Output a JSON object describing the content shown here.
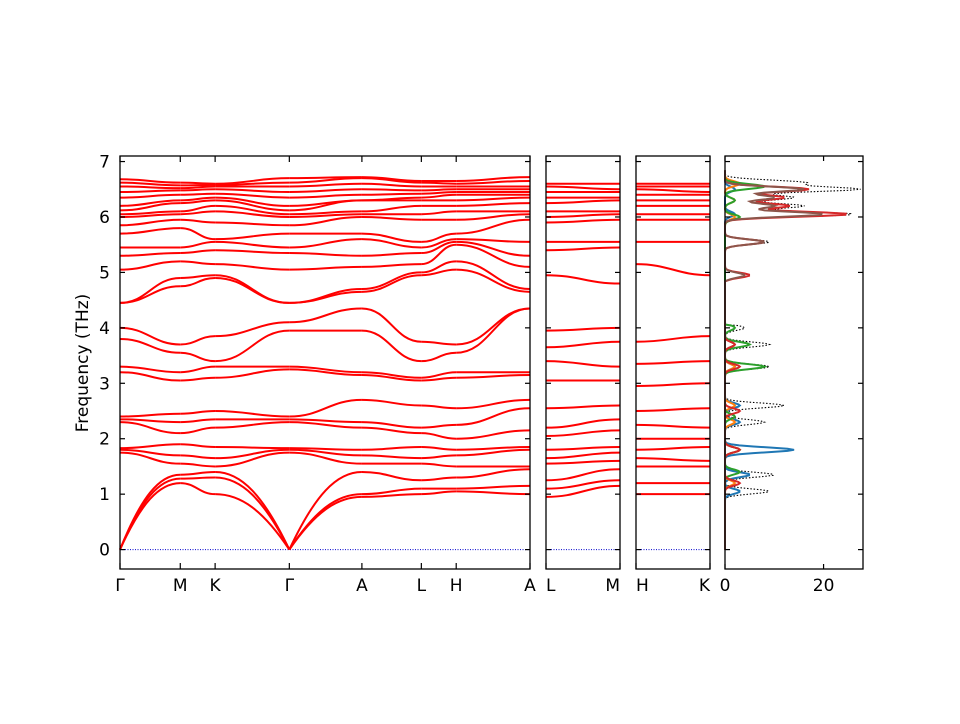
{
  "chart_data": {
    "type": "line",
    "ylabel": "Frequency (THz)",
    "ylim": [
      -0.35,
      7.1
    ],
    "y_ticks": [
      0,
      1,
      2,
      3,
      4,
      5,
      6,
      7
    ],
    "zero_line_color": "#0000cc",
    "band_color": "#ff0000",
    "band_panels": [
      {
        "id": "panel-main",
        "kpoints": [
          "Γ",
          "M",
          "K",
          "Γ",
          "A",
          "L",
          "H",
          "A"
        ],
        "kpos": [
          0,
          0.147,
          0.232,
          0.413,
          0.59,
          0.735,
          0.82,
          1.0
        ],
        "segments": [
          {
            "from": 0,
            "to": 1,
            "bands_start": [
              0,
              0,
              0,
              1.75,
              1.8,
              1.83,
              2.3,
              2.35,
              2.4,
              3.2,
              3.3,
              3.8,
              4.0,
              4.45,
              4.45,
              5.05,
              5.3,
              5.45,
              5.7,
              5.85,
              6.0,
              6.05,
              6.12,
              6.2,
              6.35,
              6.45,
              6.55,
              6.62,
              6.68
            ],
            "bands_end": [
              1.2,
              1.28,
              1.35,
              1.55,
              1.7,
              1.9,
              2.1,
              2.3,
              2.45,
              3.05,
              3.2,
              3.55,
              3.7,
              4.75,
              4.9,
              5.2,
              5.35,
              5.45,
              5.8,
              5.95,
              6.05,
              6.1,
              6.25,
              6.3,
              6.4,
              6.48,
              6.52,
              6.57,
              6.62
            ]
          },
          {
            "from": 1,
            "to": 2,
            "bands_start": [
              1.2,
              1.28,
              1.35,
              1.55,
              1.7,
              1.9,
              2.1,
              2.3,
              2.45,
              3.05,
              3.2,
              3.55,
              3.7,
              4.75,
              4.9,
              5.2,
              5.35,
              5.45,
              5.8,
              5.95,
              6.05,
              6.1,
              6.25,
              6.3,
              6.4,
              6.48,
              6.52,
              6.57,
              6.62
            ],
            "bands_end": [
              1.0,
              1.3,
              1.4,
              1.5,
              1.65,
              1.85,
              2.2,
              2.35,
              2.5,
              3.1,
              3.3,
              3.4,
              3.85,
              4.9,
              4.95,
              5.15,
              5.4,
              5.55,
              5.6,
              5.9,
              6.1,
              6.2,
              6.3,
              6.35,
              6.42,
              6.5,
              6.55,
              6.58,
              6.6
            ]
          },
          {
            "from": 2,
            "to": 3,
            "bands_start": [
              1.0,
              1.3,
              1.4,
              1.5,
              1.65,
              1.85,
              2.2,
              2.35,
              2.5,
              3.1,
              3.3,
              3.4,
              3.85,
              4.9,
              4.95,
              5.15,
              5.4,
              5.55,
              5.6,
              5.9,
              6.1,
              6.2,
              6.3,
              6.35,
              6.42,
              6.5,
              6.55,
              6.58,
              6.6
            ],
            "bands_end": [
              0,
              0,
              0,
              1.75,
              1.8,
              1.83,
              2.3,
              2.35,
              2.4,
              3.25,
              3.3,
              3.95,
              4.1,
              4.45,
              4.45,
              5.05,
              5.35,
              5.45,
              5.7,
              5.85,
              6.0,
              6.05,
              6.12,
              6.2,
              6.35,
              6.45,
              6.55,
              6.62,
              6.7
            ]
          },
          {
            "from": 3,
            "to": 4,
            "bands_start": [
              0,
              0,
              0,
              1.75,
              1.8,
              1.83,
              2.3,
              2.35,
              2.4,
              3.25,
              3.3,
              3.95,
              4.1,
              4.45,
              4.45,
              5.05,
              5.35,
              5.45,
              5.7,
              5.85,
              6.0,
              6.05,
              6.12,
              6.2,
              6.35,
              6.45,
              6.55,
              6.62,
              6.7
            ],
            "bands_end": [
              0.95,
              1.0,
              1.4,
              1.55,
              1.7,
              1.8,
              2.2,
              2.3,
              2.7,
              3.15,
              3.2,
              3.95,
              4.35,
              4.65,
              4.7,
              5.1,
              5.3,
              5.6,
              5.7,
              6.0,
              6.05,
              6.1,
              6.3,
              6.3,
              6.4,
              6.5,
              6.6,
              6.7,
              6.72
            ]
          },
          {
            "from": 4,
            "to": 5,
            "bands_start": [
              0.95,
              1.0,
              1.4,
              1.55,
              1.7,
              1.8,
              2.2,
              2.3,
              2.7,
              3.15,
              3.2,
              3.95,
              4.35,
              4.65,
              4.7,
              5.1,
              5.3,
              5.6,
              5.7,
              6.0,
              6.05,
              6.1,
              6.3,
              6.3,
              6.4,
              6.5,
              6.6,
              6.7,
              6.72
            ],
            "bands_end": [
              1.0,
              1.1,
              1.25,
              1.55,
              1.65,
              1.85,
              2.1,
              2.2,
              2.6,
              3.05,
              3.1,
              3.4,
              3.75,
              4.95,
              5.0,
              5.15,
              5.35,
              5.45,
              5.55,
              5.95,
              6.05,
              6.2,
              6.3,
              6.35,
              6.42,
              6.48,
              6.55,
              6.62,
              6.65
            ]
          },
          {
            "from": 5,
            "to": 6,
            "bands_start": [
              1.0,
              1.1,
              1.25,
              1.55,
              1.65,
              1.85,
              2.1,
              2.2,
              2.6,
              3.05,
              3.1,
              3.4,
              3.75,
              4.95,
              5.0,
              5.15,
              5.35,
              5.45,
              5.55,
              5.95,
              6.05,
              6.2,
              6.3,
              6.35,
              6.42,
              6.48,
              6.55,
              6.62,
              6.65
            ],
            "bands_end": [
              1.05,
              1.1,
              1.3,
              1.5,
              1.7,
              1.8,
              2.0,
              2.25,
              2.55,
              3.1,
              3.2,
              3.55,
              3.7,
              5.05,
              5.2,
              5.5,
              5.55,
              5.6,
              5.7,
              5.95,
              6.1,
              6.2,
              6.3,
              6.4,
              6.45,
              6.5,
              6.55,
              6.6,
              6.65
            ]
          },
          {
            "from": 6,
            "to": 7,
            "bands_start": [
              1.05,
              1.1,
              1.3,
              1.5,
              1.7,
              1.8,
              2.0,
              2.25,
              2.55,
              3.1,
              3.2,
              3.55,
              3.7,
              5.05,
              5.2,
              5.5,
              5.55,
              5.6,
              5.7,
              5.95,
              6.1,
              6.2,
              6.3,
              6.4,
              6.45,
              6.5,
              6.55,
              6.6,
              6.65
            ],
            "bands_end": [
              1.0,
              1.15,
              1.45,
              1.5,
              1.8,
              1.85,
              2.15,
              2.55,
              2.7,
              3.15,
              3.2,
              4.35,
              4.35,
              4.65,
              4.7,
              5.1,
              5.3,
              5.55,
              5.95,
              6.05,
              6.1,
              6.25,
              6.35,
              6.4,
              6.45,
              6.5,
              6.55,
              6.65,
              6.72
            ]
          }
        ]
      },
      {
        "id": "panel-lm",
        "kpoints": [
          "L",
          "M"
        ],
        "kpos": [
          0,
          1.0
        ],
        "segments": [
          {
            "from": 0,
            "to": 1,
            "bands_start": [
              0.95,
              1.1,
              1.25,
              1.55,
              1.65,
              1.8,
              2.05,
              2.2,
              2.55,
              3.05,
              3.4,
              3.65,
              3.95,
              4.95,
              5.4,
              5.55,
              5.9,
              6.0,
              6.1,
              6.25,
              6.35,
              6.45,
              6.55,
              6.6
            ],
            "bands_end": [
              1.15,
              1.25,
              1.45,
              1.6,
              1.75,
              1.85,
              2.15,
              2.35,
              2.6,
              3.05,
              3.3,
              3.75,
              4.0,
              4.8,
              5.45,
              5.55,
              5.95,
              6.05,
              6.1,
              6.3,
              6.35,
              6.45,
              6.5,
              6.6
            ]
          }
        ]
      },
      {
        "id": "panel-hk",
        "kpoints": [
          "H",
          "K"
        ],
        "kpos": [
          0,
          1.0
        ],
        "segments": [
          {
            "from": 0,
            "to": 1,
            "bands_start": [
              1.0,
              1.2,
              1.5,
              1.65,
              1.8,
              2.0,
              2.25,
              2.5,
              2.95,
              3.35,
              3.75,
              5.15,
              5.55,
              5.95,
              6.05,
              6.2,
              6.3,
              6.4,
              6.5,
              6.55,
              6.6
            ],
            "bands_end": [
              1.0,
              1.2,
              1.5,
              1.6,
              1.85,
              2.0,
              2.2,
              2.55,
              3.0,
              3.4,
              3.85,
              4.95,
              5.55,
              5.95,
              6.05,
              6.2,
              6.3,
              6.4,
              6.45,
              6.55,
              6.6
            ]
          }
        ]
      }
    ],
    "dos_panel": {
      "xlim": [
        0,
        28
      ],
      "x_ticks": [
        0,
        20
      ],
      "series": [
        {
          "color": "#000000",
          "style": "dotted",
          "peaks": [
            [
              1.05,
              9
            ],
            [
              1.35,
              10
            ],
            [
              1.8,
              14
            ],
            [
              2.3,
              8
            ],
            [
              2.6,
              12
            ],
            [
              3.3,
              9
            ],
            [
              3.7,
              9
            ],
            [
              4.0,
              4
            ],
            [
              4.95,
              4
            ],
            [
              5.55,
              9
            ],
            [
              6.05,
              26
            ],
            [
              6.2,
              16
            ],
            [
              6.35,
              14
            ],
            [
              6.5,
              27
            ],
            [
              6.62,
              16
            ]
          ]
        },
        {
          "color": "#1f77b4",
          "style": "solid",
          "peaks": [
            [
              1.05,
              3
            ],
            [
              1.35,
              5
            ],
            [
              1.8,
              14
            ],
            [
              2.3,
              3
            ],
            [
              2.6,
              3
            ],
            [
              3.3,
              2
            ],
            [
              3.7,
              2
            ],
            [
              6.05,
              2
            ],
            [
              6.5,
              2
            ]
          ]
        },
        {
          "color": "#ff7f0e",
          "style": "solid",
          "peaks": [
            [
              1.2,
              2
            ],
            [
              1.8,
              3
            ],
            [
              2.3,
              2
            ],
            [
              2.6,
              2
            ],
            [
              3.3,
              2
            ],
            [
              3.7,
              2
            ],
            [
              6.0,
              2
            ],
            [
              6.3,
              2
            ],
            [
              6.6,
              3
            ]
          ]
        },
        {
          "color": "#2ca02c",
          "style": "solid",
          "peaks": [
            [
              1.4,
              3
            ],
            [
              1.8,
              3
            ],
            [
              2.4,
              2
            ],
            [
              3.3,
              8
            ],
            [
              3.7,
              5
            ],
            [
              4.0,
              2
            ],
            [
              6.0,
              3
            ],
            [
              6.3,
              2
            ],
            [
              6.55,
              8
            ]
          ]
        },
        {
          "color": "#d62728",
          "style": "solid",
          "peaks": [
            [
              1.2,
              3
            ],
            [
              1.8,
              3
            ],
            [
              2.5,
              3
            ],
            [
              3.3,
              3
            ],
            [
              3.7,
              2
            ],
            [
              4.95,
              5
            ],
            [
              5.55,
              8
            ],
            [
              6.05,
              25
            ],
            [
              6.2,
              13
            ],
            [
              6.35,
              12
            ],
            [
              6.5,
              17
            ]
          ]
        },
        {
          "color": "#8c564b",
          "style": "solid",
          "peaks": [
            [
              4.95,
              4
            ],
            [
              5.55,
              8
            ],
            [
              6.05,
              20
            ],
            [
              6.2,
              10
            ],
            [
              6.35,
              10
            ],
            [
              6.5,
              16
            ]
          ]
        }
      ]
    }
  }
}
